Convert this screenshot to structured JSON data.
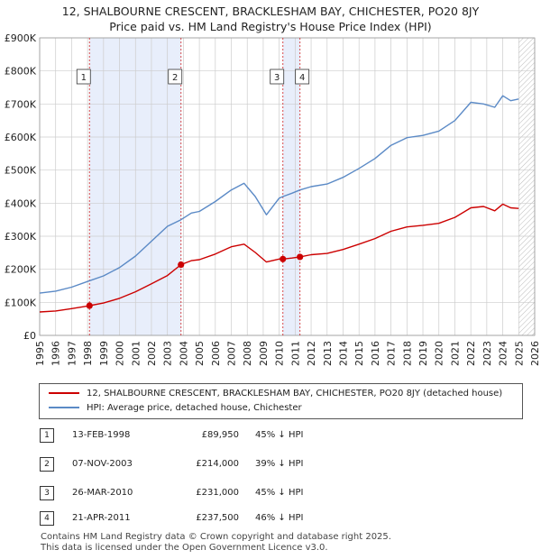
{
  "title_line1": "12, SHALBOURNE CRESCENT, BRACKLESHAM BAY, CHICHESTER, PO20 8JY",
  "title_line2": "Price paid vs. HM Land Registry's House Price Index (HPI)",
  "legend": {
    "property_label": "12, SHALBOURNE CRESCENT, BRACKLESHAM BAY, CHICHESTER, PO20 8JY (detached house)",
    "hpi_label": "HPI: Average price, detached house, Chichester"
  },
  "transactions": [
    {
      "num": "1",
      "date": "13-FEB-1998",
      "price": "£89,950",
      "hpi": "45% ↓ HPI"
    },
    {
      "num": "2",
      "date": "07-NOV-2003",
      "price": "£214,000",
      "hpi": "39% ↓ HPI"
    },
    {
      "num": "3",
      "date": "26-MAR-2010",
      "price": "£231,000",
      "hpi": "45% ↓ HPI"
    },
    {
      "num": "4",
      "date": "21-APR-2011",
      "price": "£237,500",
      "hpi": "46% ↓ HPI"
    }
  ],
  "footer_line1": "Contains HM Land Registry data © Crown copyright and database right 2025.",
  "footer_line2": "This data is licensed under the Open Government Licence v3.0.",
  "colors": {
    "property": "#cc0000",
    "hpi": "#5b8ac6",
    "shade": "#e8eefb",
    "grid": "#cccccc"
  },
  "chart_data": {
    "type": "line",
    "xlim": [
      1995,
      2026
    ],
    "ylim": [
      0,
      900000
    ],
    "x_ticks": [
      1995,
      1996,
      1997,
      1998,
      1999,
      2000,
      2001,
      2002,
      2003,
      2004,
      2005,
      2006,
      2007,
      2008,
      2009,
      2010,
      2011,
      2012,
      2013,
      2014,
      2015,
      2016,
      2017,
      2018,
      2019,
      2020,
      2021,
      2022,
      2023,
      2024,
      2025,
      2026
    ],
    "y_ticks": [
      0,
      100000,
      200000,
      300000,
      400000,
      500000,
      600000,
      700000,
      800000,
      900000
    ],
    "y_tick_labels": [
      "£0",
      "£100K",
      "£200K",
      "£300K",
      "£400K",
      "£500K",
      "£600K",
      "£700K",
      "£800K",
      "£900K"
    ],
    "sales": [
      {
        "label": "1",
        "x": 1998.12,
        "y": 89950
      },
      {
        "label": "2",
        "x": 2003.85,
        "y": 214000
      },
      {
        "label": "3",
        "x": 2010.23,
        "y": 231000
      },
      {
        "label": "4",
        "x": 2011.3,
        "y": 237500
      }
    ],
    "shaded_ranges": [
      [
        1998.12,
        2003.85
      ],
      [
        2010.23,
        2011.3
      ]
    ],
    "projection_start": 2025.0,
    "series": [
      {
        "name": "HPI: Average price, detached house, Chichester",
        "x": [
          1995,
          1996,
          1997,
          1998,
          1999,
          2000,
          2001,
          2002,
          2003,
          2003.85,
          2004.5,
          2005,
          2006,
          2007,
          2007.8,
          2008.5,
          2009.2,
          2010,
          2010.23,
          2010.8,
          2011.3,
          2012,
          2013,
          2014,
          2015,
          2016,
          2017,
          2018,
          2019,
          2020,
          2021,
          2022,
          2022.8,
          2023.5,
          2024,
          2024.5,
          2025
        ],
        "y": [
          128000,
          134000,
          146000,
          163000,
          180000,
          205000,
          240000,
          285000,
          330000,
          350000,
          370000,
          375000,
          405000,
          440000,
          460000,
          420000,
          365000,
          415000,
          420000,
          430000,
          440000,
          450000,
          458000,
          478000,
          505000,
          535000,
          575000,
          598000,
          605000,
          618000,
          650000,
          705000,
          700000,
          690000,
          725000,
          710000,
          715000
        ]
      },
      {
        "name": "12, SHALBOURNE CRESCENT, BRACKLESHAM BAY, CHICHESTER, PO20 8JY (detached house)",
        "x": [
          1995,
          1996,
          1997,
          1998,
          1998.12,
          1999,
          2000,
          2001,
          2002,
          2003,
          2003.85,
          2004.5,
          2005,
          2006,
          2007,
          2007.8,
          2008.5,
          2009.2,
          2010,
          2010.23,
          2010.8,
          2011.3,
          2012,
          2013,
          2014,
          2015,
          2016,
          2017,
          2018,
          2019,
          2020,
          2021,
          2022,
          2022.8,
          2023.5,
          2024,
          2024.5,
          2025
        ],
        "y": [
          71000,
          74000,
          81000,
          89000,
          89950,
          98000,
          112000,
          132000,
          156000,
          181000,
          214000,
          226000,
          229000,
          246000,
          268000,
          276000,
          251000,
          222000,
          231000,
          231000,
          234000,
          237500,
          244000,
          248000,
          260000,
          276000,
          293000,
          315000,
          328000,
          333000,
          339000,
          357000,
          386000,
          390000,
          377000,
          397000,
          386000,
          384000
        ]
      }
    ]
  }
}
